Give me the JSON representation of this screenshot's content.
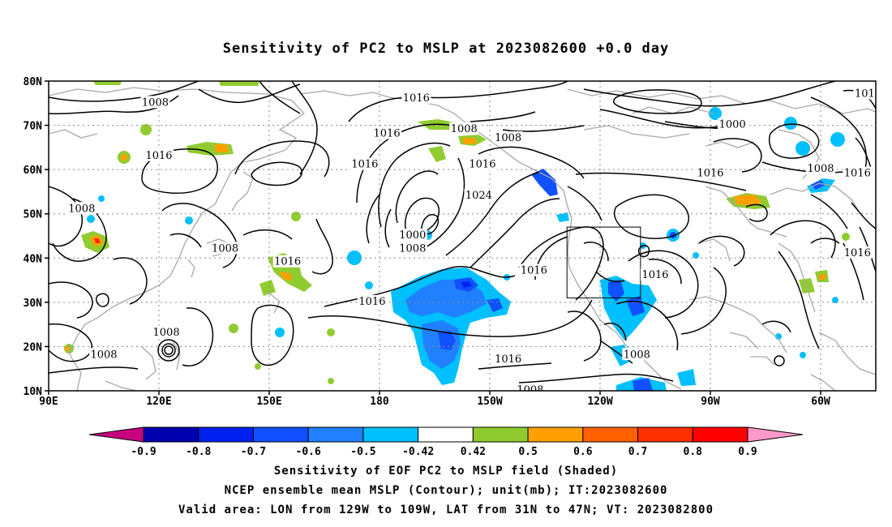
{
  "title": "Sensitivity of PC2 to MSLP at 2023082600 +0.0 day",
  "map": {
    "lat_labels": [
      "80N",
      "70N",
      "60N",
      "50N",
      "40N",
      "30N",
      "20N",
      "10N"
    ],
    "lon_labels": [
      "90E",
      "120E",
      "150E",
      "180",
      "150W",
      "120W",
      "90W",
      "60W"
    ],
    "lon_range": [
      90,
      315
    ],
    "lat_range": [
      10,
      80
    ],
    "validation_box": {
      "lon": [
        -129,
        -109
      ],
      "lat": [
        31,
        47
      ]
    },
    "contour_labels": [
      {
        "text": "1008",
        "lon": 119,
        "lat": 75
      },
      {
        "text": "1016",
        "lon": 120,
        "lat": 63
      },
      {
        "text": "1008",
        "lon": 99,
        "lat": 51
      },
      {
        "text": "1008",
        "lon": 138,
        "lat": 42
      },
      {
        "text": "1016",
        "lon": 155,
        "lat": 39
      },
      {
        "text": "1008",
        "lon": 122,
        "lat": 23
      },
      {
        "text": "1008",
        "lon": 105,
        "lat": 18
      },
      {
        "text": "1016",
        "lon": 190,
        "lat": 76
      },
      {
        "text": "1016",
        "lon": 182,
        "lat": 68
      },
      {
        "text": "1016",
        "lon": 176,
        "lat": 61
      },
      {
        "text": "1008",
        "lon": 203,
        "lat": 69
      },
      {
        "text": "1008",
        "lon": 215,
        "lat": 67
      },
      {
        "text": "1016",
        "lon": 208,
        "lat": 61
      },
      {
        "text": "1024",
        "lon": 207,
        "lat": 54
      },
      {
        "text": "1000",
        "lon": 189,
        "lat": 45
      },
      {
        "text": "1008",
        "lon": 189,
        "lat": 42
      },
      {
        "text": "1016",
        "lon": 178,
        "lat": 30
      },
      {
        "text": "1016",
        "lon": 222,
        "lat": 37
      },
      {
        "text": "1016",
        "lon": 215,
        "lat": 17
      },
      {
        "text": "1016",
        "lon": 255,
        "lat": 36
      },
      {
        "text": "1008",
        "lon": 250,
        "lat": 18
      },
      {
        "text": "1008",
        "lon": 221,
        "lat": 10
      },
      {
        "text": "1000",
        "lon": 276,
        "lat": 70
      },
      {
        "text": "1016",
        "lon": 270,
        "lat": 59
      },
      {
        "text": "1008",
        "lon": 300,
        "lat": 60
      },
      {
        "text": "1016",
        "lon": 310,
        "lat": 59
      },
      {
        "text": "1016",
        "lon": 310,
        "lat": 41
      },
      {
        "text": "101",
        "lon": 312,
        "lat": 77
      }
    ]
  },
  "colorbar": {
    "labels": [
      "-0.9",
      "-0.8",
      "-0.7",
      "-0.6",
      "-0.5",
      "-0.42",
      "0.42",
      "0.5",
      "0.6",
      "0.7",
      "0.8",
      "0.9"
    ],
    "colors": [
      "#0000b0",
      "#0020f0",
      "#1050ff",
      "#2080ff",
      "#00c0ff",
      "#ffffff",
      "#90cc30",
      "#ffa000",
      "#ff6000",
      "#ff3000",
      "#ff0000"
    ],
    "under_color": "#c80080",
    "over_color": "#ff99cc"
  },
  "footer": {
    "line1": "Sensitivity of EOF PC2 to MSLP field (Shaded)",
    "line2": "NCEP ensemble mean MSLP (Contour); unit(mb); IT:2023082600",
    "line3": "Valid area: LON from 129W to 109W, LAT from 31N to 47N; VT: 2023082800"
  }
}
